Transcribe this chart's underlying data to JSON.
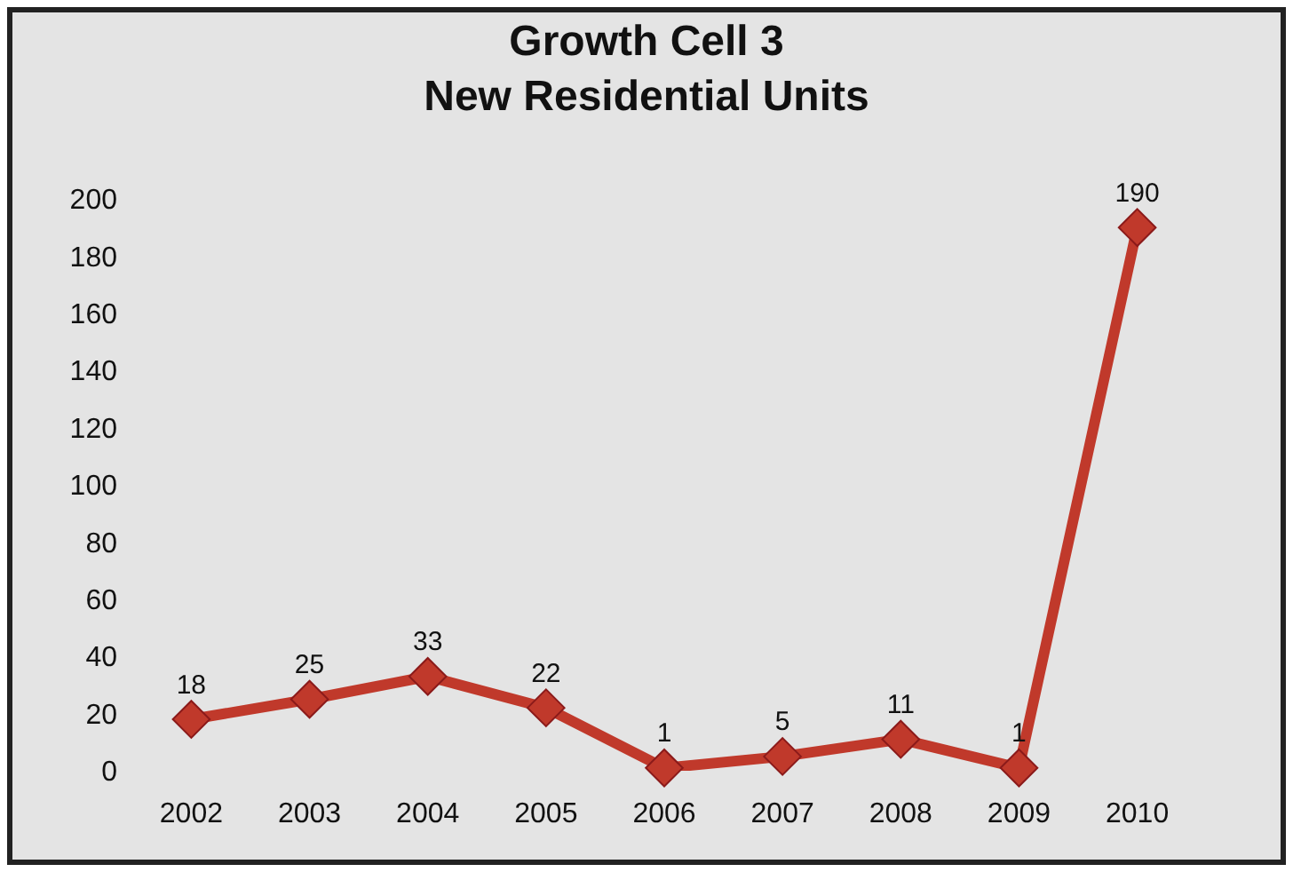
{
  "chart_data": {
    "type": "line",
    "title": "Growth Cell 3\nNew Residential Units",
    "categories": [
      "2002",
      "2003",
      "2004",
      "2005",
      "2006",
      "2007",
      "2008",
      "2009",
      "2010"
    ],
    "series": [
      {
        "color": "#c0392b",
        "values": [
          18,
          25,
          33,
          22,
          1,
          5,
          11,
          1,
          190
        ]
      }
    ],
    "ylim": [
      0,
      200
    ],
    "yticks": [
      0,
      20,
      40,
      60,
      80,
      100,
      120,
      140,
      160,
      180,
      200
    ],
    "grid": false,
    "marker": "diamond",
    "line_style": "solid",
    "data_labels": true
  }
}
